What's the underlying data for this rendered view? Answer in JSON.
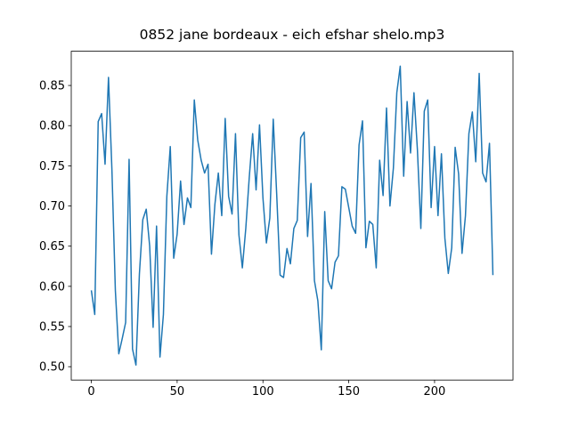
{
  "chart_data": {
    "type": "line",
    "title": "0852 jane bordeaux - eich efshar shelo.mp3",
    "x": [
      0,
      2,
      4,
      6,
      8,
      10,
      12,
      14,
      16,
      18,
      20,
      22,
      24,
      26,
      28,
      30,
      32,
      34,
      36,
      38,
      40,
      42,
      44,
      46,
      48,
      50,
      52,
      54,
      56,
      58,
      60,
      62,
      64,
      66,
      68,
      70,
      72,
      74,
      76,
      78,
      80,
      82,
      84,
      86,
      88,
      90,
      92,
      94,
      96,
      98,
      100,
      102,
      104,
      106,
      108,
      110,
      112,
      114,
      116,
      118,
      120,
      122,
      124,
      126,
      128,
      130,
      132,
      134,
      136,
      138,
      140,
      142,
      144,
      146,
      148,
      150,
      152,
      154,
      156,
      158,
      160,
      162,
      164,
      166,
      168,
      170,
      172,
      174,
      176,
      178,
      180,
      182,
      184,
      186,
      188,
      190,
      192,
      194,
      196,
      198,
      200,
      202,
      204,
      206,
      208,
      210,
      212,
      214,
      216,
      218,
      220,
      222,
      224,
      226,
      228,
      230,
      232,
      234
    ],
    "series": [
      {
        "color": "#1f77b4",
        "values": [
          0.595,
          0.565,
          0.805,
          0.815,
          0.752,
          0.86,
          0.745,
          0.595,
          0.516,
          0.535,
          0.555,
          0.758,
          0.522,
          0.502,
          0.615,
          0.683,
          0.696,
          0.65,
          0.549,
          0.675,
          0.512,
          0.565,
          0.712,
          0.774,
          0.635,
          0.665,
          0.731,
          0.677,
          0.71,
          0.698,
          0.832,
          0.782,
          0.757,
          0.741,
          0.752,
          0.64,
          0.702,
          0.741,
          0.688,
          0.809,
          0.712,
          0.69,
          0.79,
          0.664,
          0.623,
          0.672,
          0.735,
          0.79,
          0.72,
          0.801,
          0.71,
          0.654,
          0.685,
          0.808,
          0.715,
          0.614,
          0.611,
          0.647,
          0.628,
          0.672,
          0.682,
          0.785,
          0.792,
          0.662,
          0.728,
          0.607,
          0.582,
          0.521,
          0.693,
          0.607,
          0.597,
          0.63,
          0.638,
          0.724,
          0.721,
          0.698,
          0.675,
          0.666,
          0.776,
          0.806,
          0.648,
          0.681,
          0.677,
          0.623,
          0.757,
          0.713,
          0.822,
          0.7,
          0.747,
          0.841,
          0.874,
          0.737,
          0.83,
          0.766,
          0.841,
          0.77,
          0.672,
          0.818,
          0.832,
          0.698,
          0.774,
          0.688,
          0.765,
          0.66,
          0.616,
          0.648,
          0.773,
          0.74,
          0.641,
          0.688,
          0.79,
          0.817,
          0.755,
          0.865,
          0.741,
          0.73,
          0.778,
          0.614
        ]
      }
    ],
    "xlim": [
      -11.7,
      245.7
    ],
    "xticks": [
      0,
      50,
      100,
      150,
      200
    ],
    "ylim": [
      0.4834,
      0.8926
    ],
    "yticks": [
      {
        "value": 0.5,
        "label": "0.50"
      },
      0.55,
      {
        "value": 0.6,
        "label": "0.60"
      },
      0.65,
      {
        "value": 0.7,
        "label": "0.70"
      },
      0.75,
      {
        "value": 0.8,
        "label": "0.80"
      },
      0.85
    ]
  }
}
